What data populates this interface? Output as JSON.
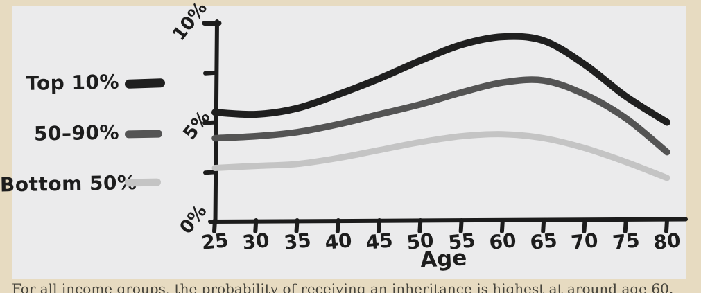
{
  "colors": {
    "background": "#e7dbc1",
    "panel": "#ebebec",
    "axis": "#1c1c1c",
    "caption_text": "#46443c"
  },
  "legend": {
    "items": [
      {
        "label": "Top 10%"
      },
      {
        "label": "50–90%"
      },
      {
        "label": "Bottom 50%"
      }
    ]
  },
  "chart_data": {
    "type": "line",
    "style": "hand-drawn",
    "title": "",
    "xlabel": "Age",
    "ylabel": "",
    "xlim": [
      25,
      80
    ],
    "ylim": [
      0,
      10
    ],
    "grid": false,
    "legend_position": "left",
    "x": [
      25,
      30,
      35,
      40,
      45,
      50,
      55,
      60,
      65,
      70,
      75,
      80
    ],
    "x_tick_labels": [
      "25",
      "30",
      "35",
      "40",
      "45",
      "50",
      "55",
      "60",
      "65",
      "70",
      "75",
      "80"
    ],
    "y_ticks_labeled": [
      10,
      5,
      0
    ],
    "y_tick_labels": [
      "10%",
      "5%",
      "0%"
    ],
    "y_ticks_minor": [
      7.5,
      2.5
    ],
    "series": [
      {
        "name": "Top 10%",
        "color": "#1f1f1f",
        "width": 10,
        "values": [
          5.5,
          5.4,
          5.7,
          6.4,
          7.2,
          8.1,
          8.9,
          9.3,
          9.1,
          7.9,
          6.3,
          5.0
        ]
      },
      {
        "name": "50–90%",
        "color": "#545454",
        "width": 9.5,
        "values": [
          4.2,
          4.3,
          4.5,
          4.9,
          5.4,
          5.9,
          6.5,
          7.0,
          7.1,
          6.4,
          5.2,
          3.5
        ]
      },
      {
        "name": "Bottom 50%",
        "color": "#c4c4c4",
        "width": 9,
        "values": [
          2.7,
          2.8,
          2.9,
          3.2,
          3.6,
          4.0,
          4.3,
          4.4,
          4.2,
          3.7,
          3.0,
          2.2
        ]
      }
    ]
  },
  "caption": "For all income groups, the probability of receiving an inheritance is highest at around age 60."
}
